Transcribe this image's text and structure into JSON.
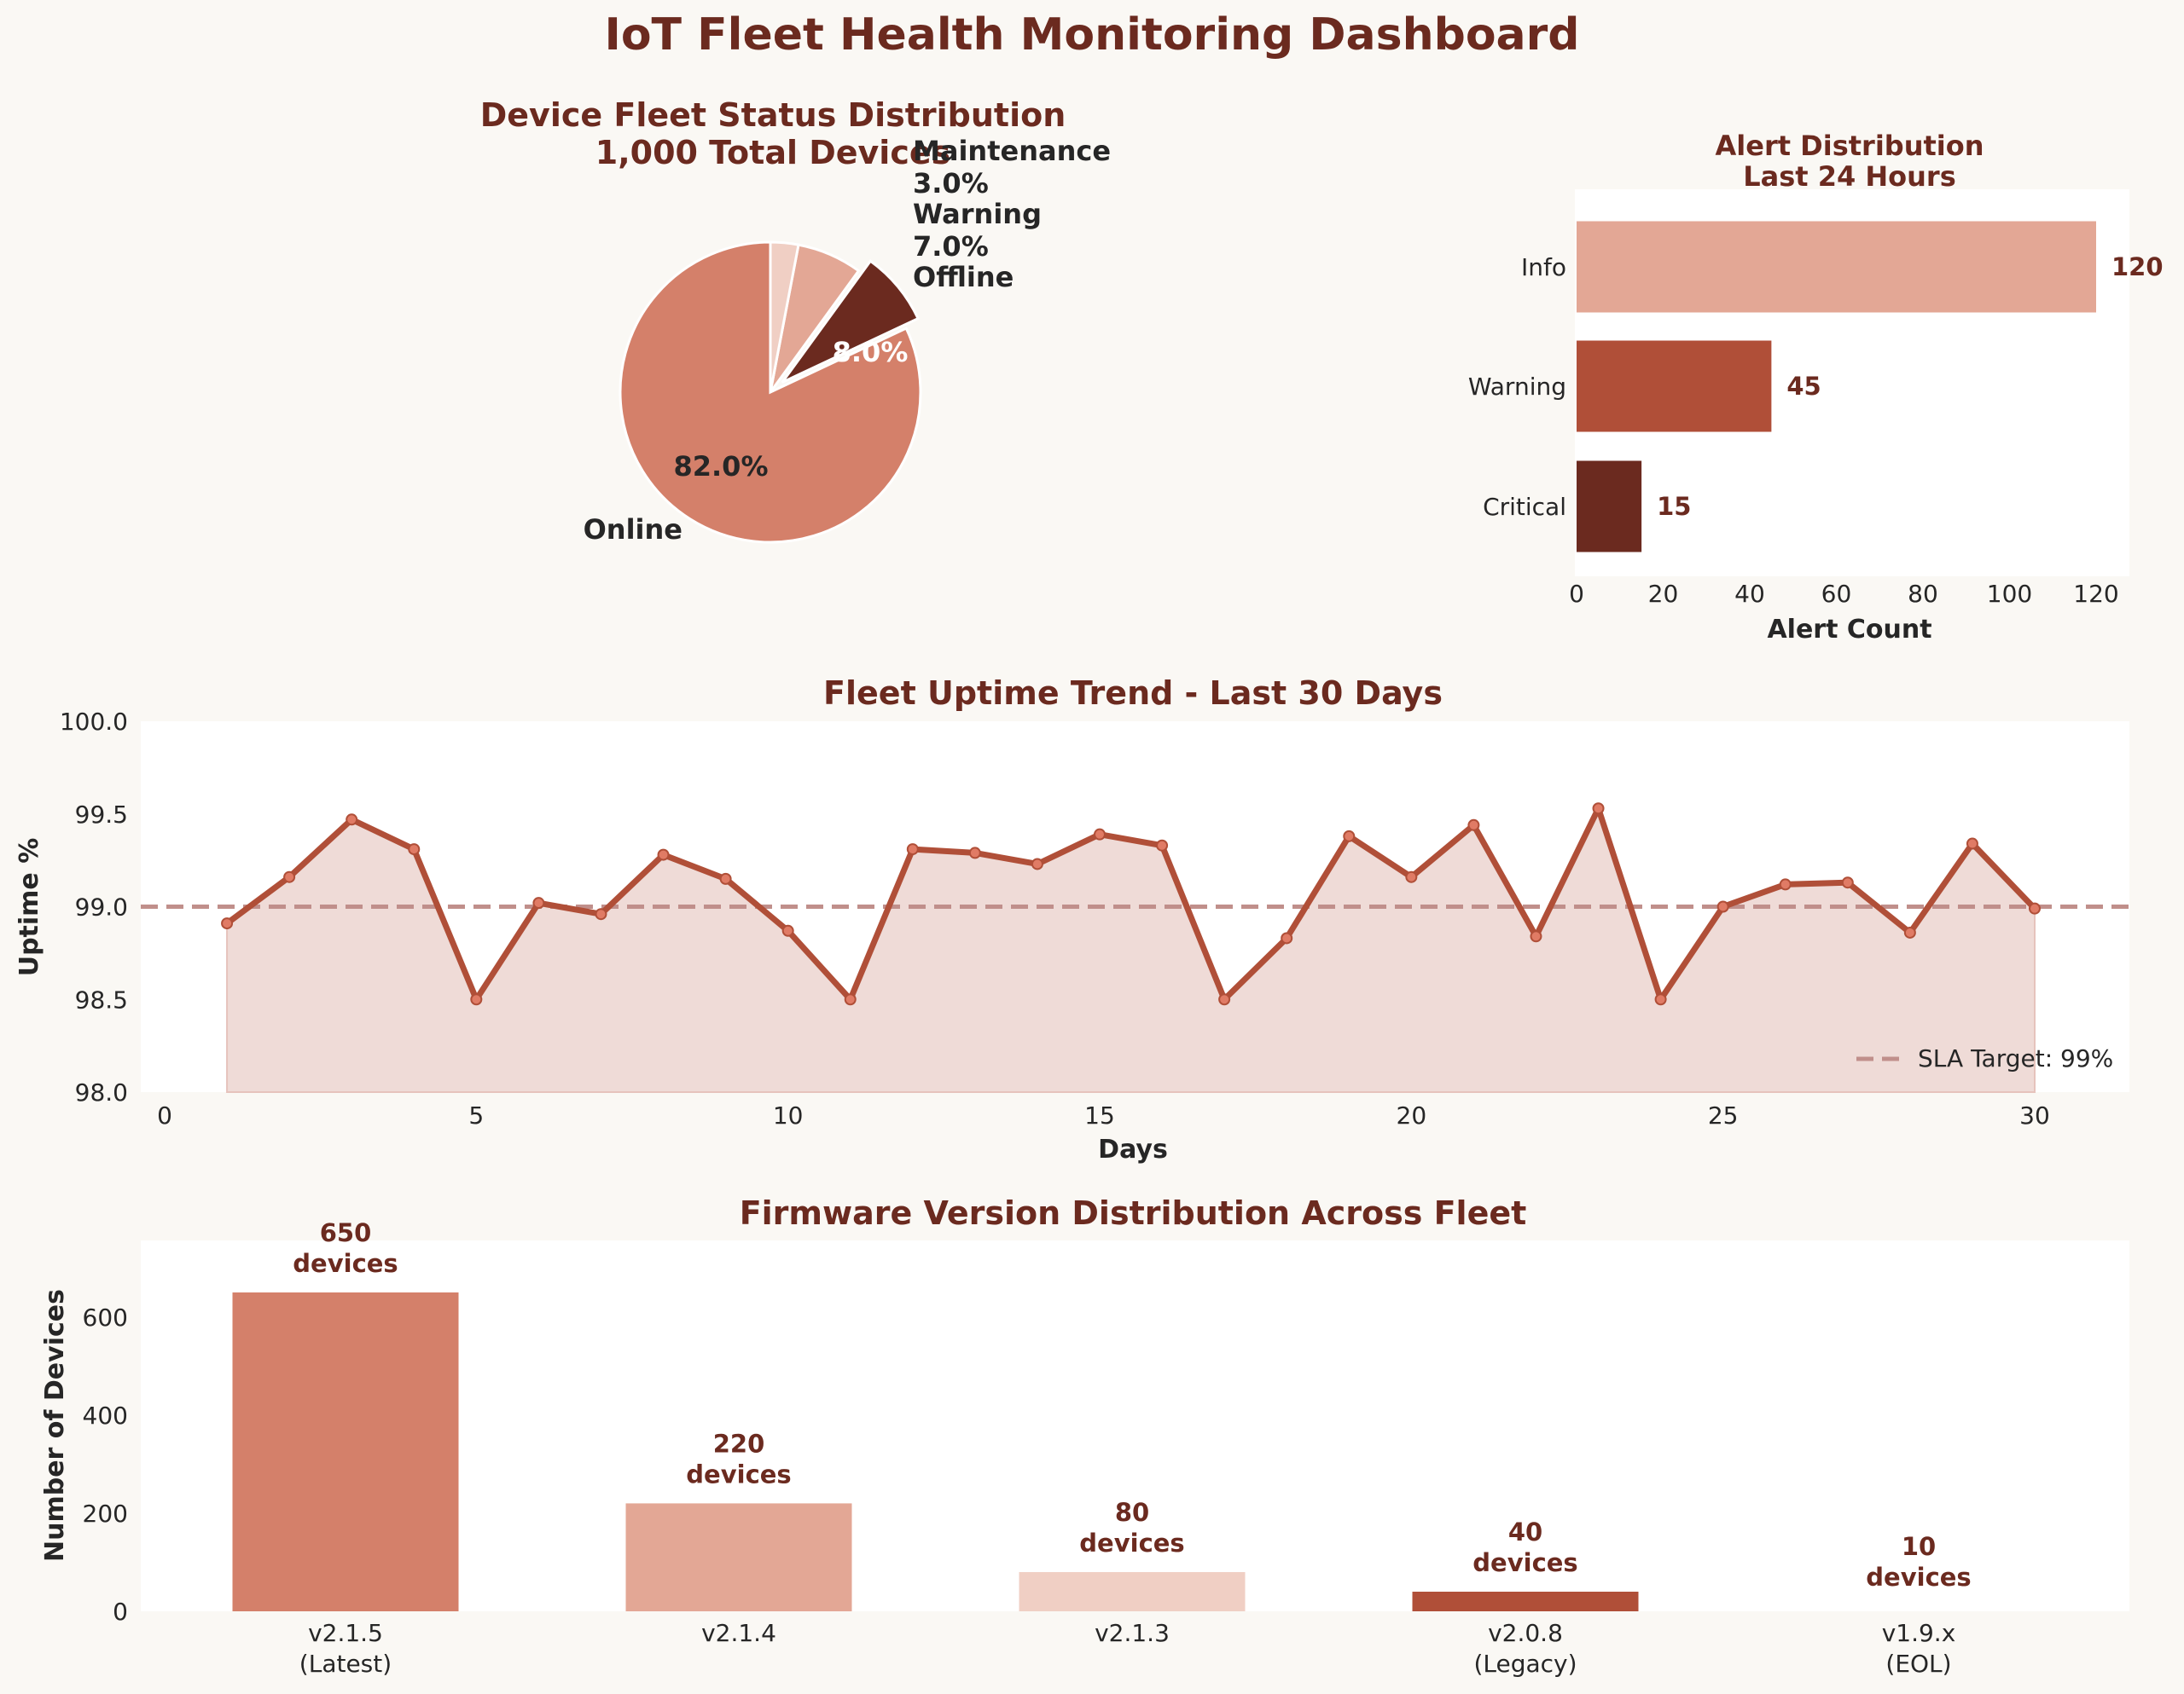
{
  "header": {
    "title": "IoT Fleet Health Monitoring Dashboard"
  },
  "colors": {
    "title": "#6b2a1f",
    "background": "#faf8f4",
    "plot_bg": "#ffffff",
    "line": "#b04f38",
    "marker": "#e07b65",
    "fill": "#efdbd7",
    "sla": "#c08f8b"
  },
  "chart_data": [
    {
      "type": "pie",
      "title": "Device Fleet Status Distribution",
      "subtitle": "1,000 Total Devices",
      "slices": [
        {
          "label": "Online",
          "value": 82.0,
          "pct_label": "82.0%",
          "color": "#d4806a",
          "exploded": false
        },
        {
          "label": "Offline",
          "value": 8.0,
          "pct_label": "8.0%",
          "color": "#6b2a1f",
          "exploded": true
        },
        {
          "label": "Warning",
          "value": 7.0,
          "pct_label": "7.0%",
          "color": "#e3a795",
          "exploded": false
        },
        {
          "label": "Maintenance",
          "value": 3.0,
          "pct_label": "3.0%",
          "color": "#f0cfc4",
          "exploded": false
        }
      ],
      "start_angle": 90
    },
    {
      "type": "bar",
      "orientation": "horizontal",
      "title": "Alert Distribution",
      "subtitle": "Last 24 Hours",
      "categories": [
        "Info",
        "Warning",
        "Critical"
      ],
      "values": [
        120,
        45,
        15
      ],
      "colors": [
        "#e3a795",
        "#b04f38",
        "#6b2a1f"
      ],
      "xlabel": "Alert Count",
      "xlim": [
        0,
        127
      ],
      "xticks": [
        0,
        20,
        40,
        60,
        80,
        100,
        120
      ]
    },
    {
      "type": "line",
      "title": "Fleet Uptime Trend - Last 30 Days",
      "xlabel": "Days",
      "ylabel": "Uptime %",
      "x": [
        1,
        2,
        3,
        4,
        5,
        6,
        7,
        8,
        9,
        10,
        11,
        12,
        13,
        14,
        15,
        16,
        17,
        18,
        19,
        20,
        21,
        22,
        23,
        24,
        25,
        26,
        27,
        28,
        29,
        30
      ],
      "y": [
        98.91,
        99.16,
        99.47,
        99.31,
        98.5,
        99.02,
        98.96,
        99.28,
        99.15,
        98.87,
        98.5,
        99.31,
        99.29,
        99.23,
        99.39,
        99.33,
        98.5,
        98.83,
        99.38,
        99.16,
        99.44,
        98.84,
        99.53,
        98.5,
        99.0,
        99.12,
        99.13,
        98.86,
        99.34,
        98.99
      ],
      "xlim": [
        0,
        31.5
      ],
      "ylim": [
        98.0,
        100.0
      ],
      "xticks": [
        0,
        5,
        10,
        15,
        20,
        25,
        30
      ],
      "yticks": [
        "98.0",
        "98.5",
        "99.0",
        "99.5",
        "100.0"
      ],
      "reference_line": {
        "value": 99.0,
        "label": "SLA Target: 99%"
      },
      "legend": "lower-right"
    },
    {
      "type": "bar",
      "title": "Firmware Version Distribution Across Fleet",
      "ylabel": "Number of Devices",
      "categories": [
        "v2.1.5\n(Latest)",
        "v2.1.4",
        "v2.1.3",
        "v2.0.8\n(Legacy)",
        "v1.9.x\n(EOL)"
      ],
      "values": [
        650,
        220,
        80,
        40,
        10
      ],
      "value_labels": [
        "650\ndevices",
        "220\ndevices",
        "80\ndevices",
        "40\ndevices",
        "10\ndevices"
      ],
      "colors": [
        "#d4806a",
        "#e3a795",
        "#f0cfc4",
        "#b04f38",
        "#ffffff"
      ],
      "ylim": [
        0,
        756
      ],
      "yticks": [
        0,
        200,
        400,
        600
      ]
    }
  ]
}
